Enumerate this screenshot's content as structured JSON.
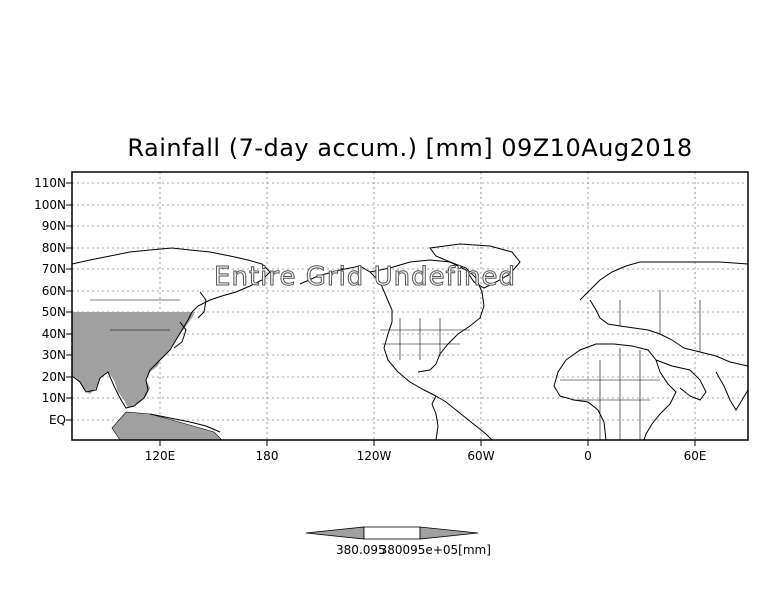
{
  "title": "Rainfall (7-day accum.) [mm] 09Z10Aug2018",
  "watermark": "Entire Grid Undefined",
  "lat_labels": [
    "110N",
    "100N",
    "90N",
    "80N",
    "70N",
    "60N",
    "50N",
    "40N",
    "30N",
    "20N",
    "10N",
    "EQ"
  ],
  "lon_labels": [
    "120E",
    "180",
    "120W",
    "60W",
    "0",
    "60E"
  ],
  "colorbar": {
    "label_left": "380.095",
    "label_right": "380095e+05",
    "units": "[mm]"
  },
  "colors": {
    "land_shade": "#a0a0a0",
    "colorbar_arrow": "#a0a0a0",
    "frame": "#000000"
  }
}
